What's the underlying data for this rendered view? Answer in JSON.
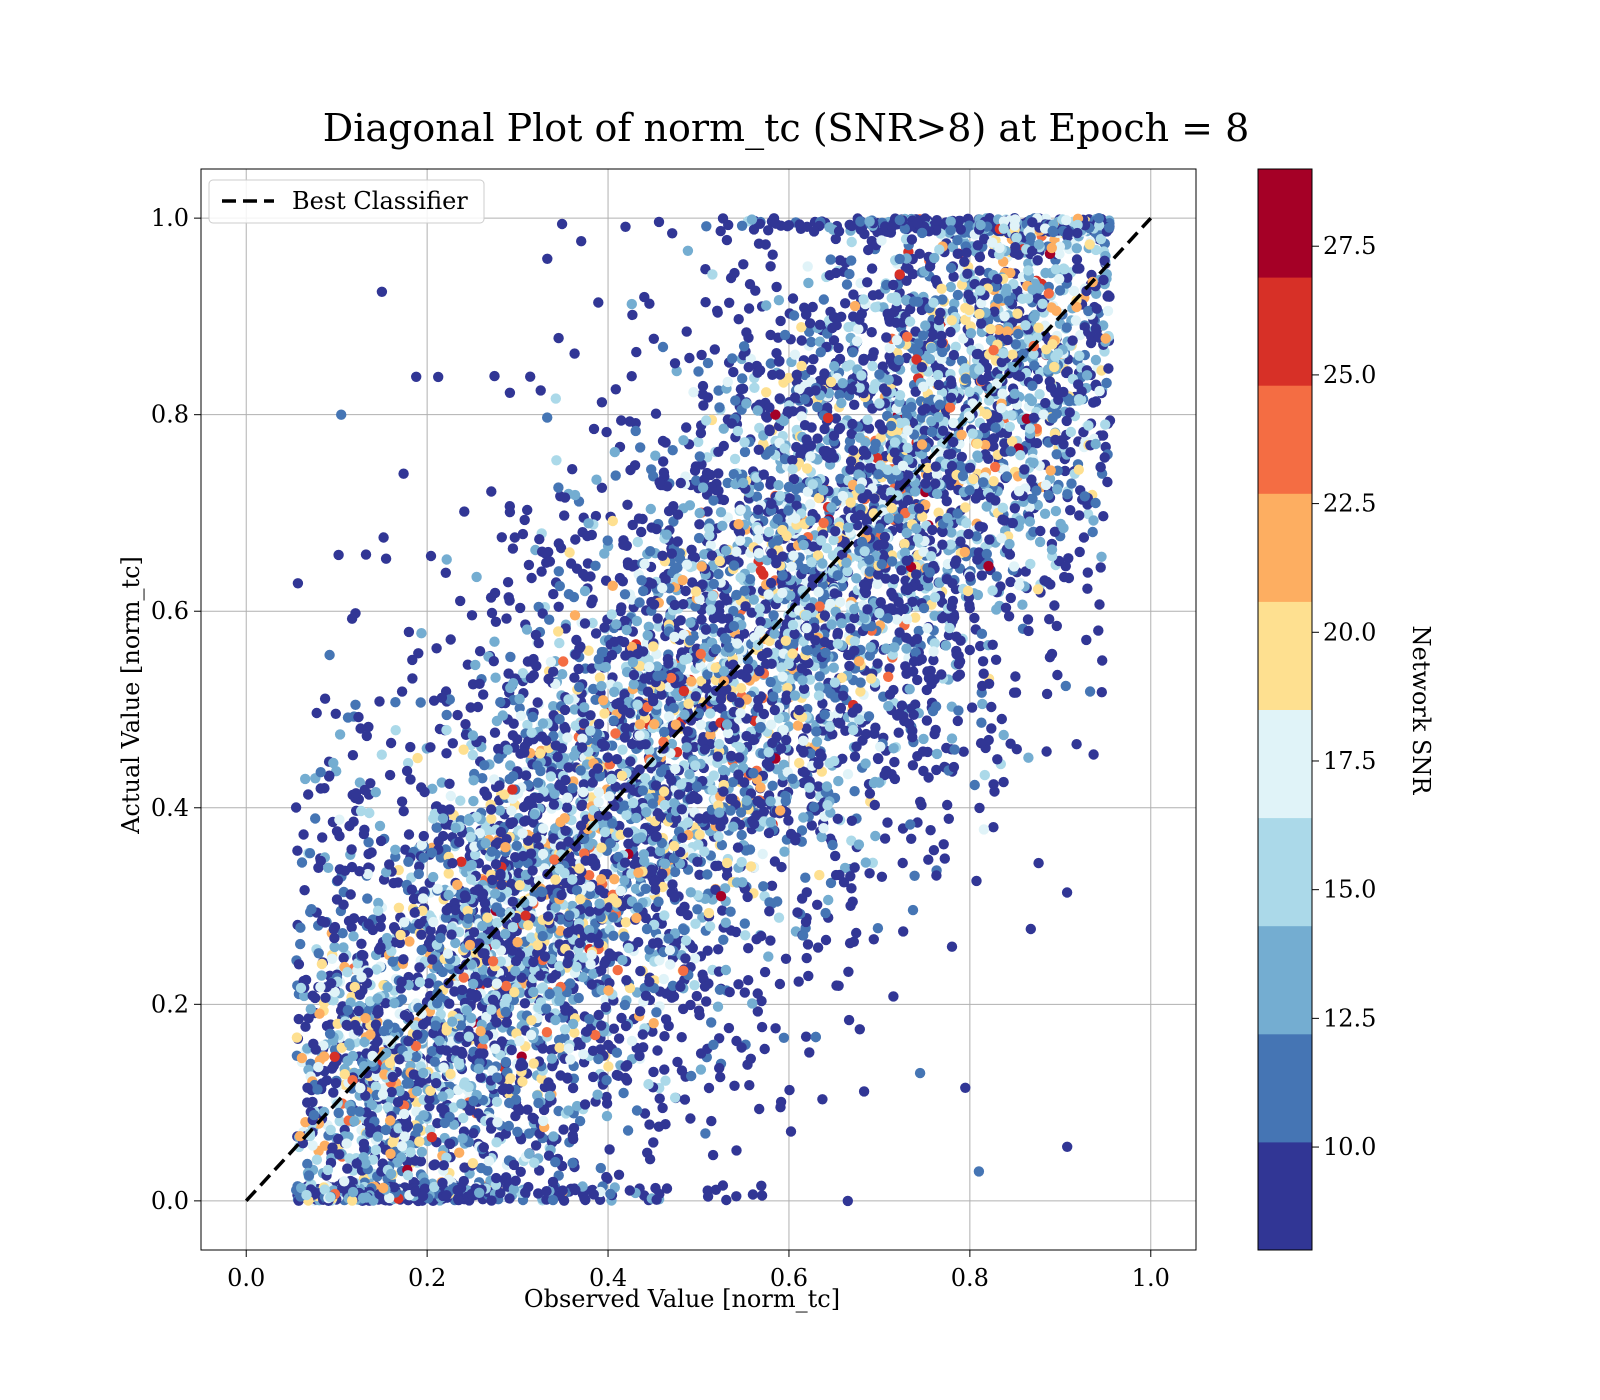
{
  "chart_data": {
    "type": "scatter",
    "title": "Diagonal Plot of norm_tc (SNR>8) at Epoch = 8",
    "xlabel": "Observed Value [norm_tc]",
    "ylabel": "Actual Value [norm_tc]",
    "xlim": [
      -0.05,
      1.05
    ],
    "ylim": [
      -0.05,
      1.05
    ],
    "xticks": [
      0.0,
      0.2,
      0.4,
      0.6,
      0.8,
      1.0
    ],
    "yticks": [
      0.0,
      0.2,
      0.4,
      0.6,
      0.8,
      1.0
    ],
    "xtick_labels": [
      "0.0",
      "0.2",
      "0.4",
      "0.6",
      "0.8",
      "1.0"
    ],
    "ytick_labels": [
      "0.0",
      "0.2",
      "0.4",
      "0.6",
      "0.8",
      "1.0"
    ],
    "grid": true,
    "legend": {
      "placement": "upper-left",
      "entries": [
        "Best Classifier"
      ]
    },
    "reference_line": {
      "label": "Best Classifier",
      "style": "dashed",
      "color": "#000000",
      "x": [
        0.0,
        1.0
      ],
      "y": [
        0.0,
        1.0
      ]
    },
    "colorbar": {
      "label": "Network SNR",
      "range": [
        8.0,
        29.0
      ],
      "ticks": [
        10.0,
        12.5,
        15.0,
        17.5,
        20.0,
        22.5,
        25.0,
        27.5
      ],
      "tick_labels": [
        "10.0",
        "12.5",
        "15.0",
        "17.5",
        "20.0",
        "22.5",
        "25.0",
        "27.5"
      ],
      "levels": [
        8.0,
        10.1,
        12.2,
        14.3,
        16.4,
        18.5,
        20.6,
        22.7,
        24.8,
        26.9,
        29.0
      ],
      "colors": [
        "#313695",
        "#4575b4",
        "#74add1",
        "#abd9e9",
        "#e0f3f8",
        "#fee090",
        "#fdae61",
        "#f46d43",
        "#d73027",
        "#a50026"
      ]
    },
    "points_note_sample": [
      {
        "x": 0.15,
        "y": 0.925,
        "snr": 9
      },
      {
        "x": 0.105,
        "y": 0.8,
        "snr": 11
      },
      {
        "x": 0.81,
        "y": 0.03,
        "snr": 11
      },
      {
        "x": 0.795,
        "y": 0.115,
        "snr": 9
      },
      {
        "x": 0.745,
        "y": 0.13,
        "snr": 11
      },
      {
        "x": 0.735,
        "y": 0.645,
        "snr": 28
      },
      {
        "x": 0.585,
        "y": 0.45,
        "snr": 28
      },
      {
        "x": 0.525,
        "y": 0.31,
        "snr": 28
      },
      {
        "x": 0.585,
        "y": 0.8,
        "snr": 28
      },
      {
        "x": 0.665,
        "y": 0.0,
        "snr": 9
      }
    ]
  }
}
